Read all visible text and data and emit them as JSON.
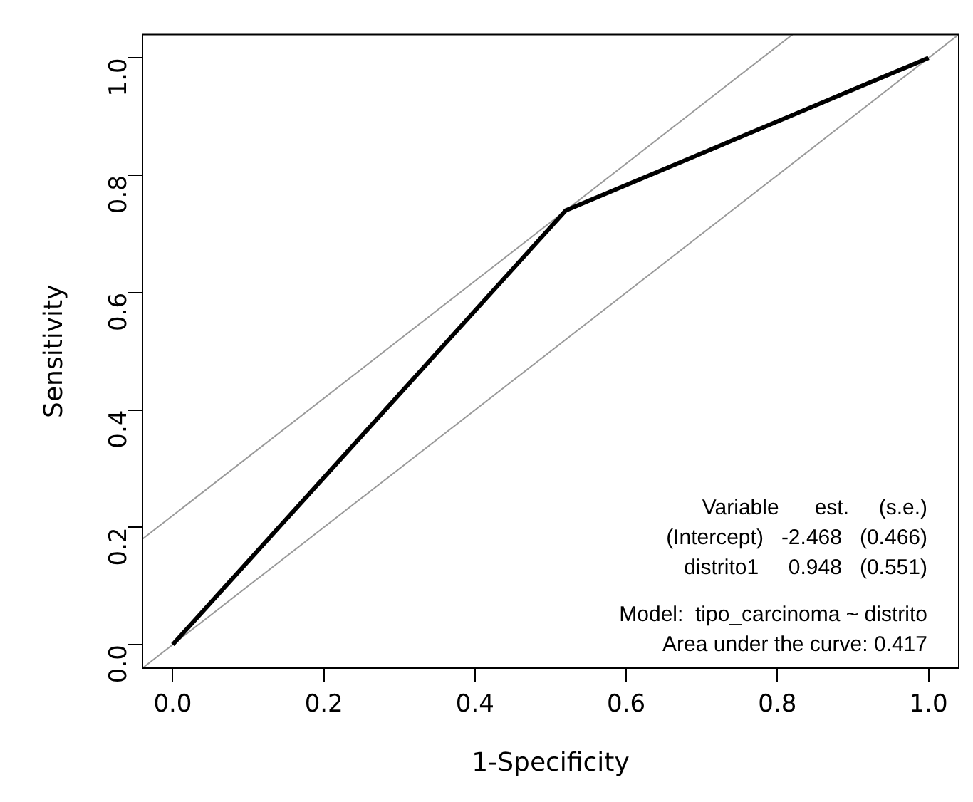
{
  "chart_data": {
    "type": "line",
    "xlabel": "1-Specificity",
    "ylabel": "Sensitivity",
    "xlim": [
      -0.04,
      1.04
    ],
    "ylim": [
      -0.04,
      1.04
    ],
    "xticks": [
      {
        "value": 0,
        "label": "0.0"
      },
      {
        "value": 0.2,
        "label": "0.2"
      },
      {
        "value": 0.4,
        "label": "0.4"
      },
      {
        "value": 0.6,
        "label": "0.6"
      },
      {
        "value": 0.8,
        "label": "0.8"
      },
      {
        "value": 1,
        "label": "1.0"
      }
    ],
    "yticks": [
      {
        "value": 0,
        "label": "0.0"
      },
      {
        "value": 0.2,
        "label": "0.2"
      },
      {
        "value": 0.4,
        "label": "0.4"
      },
      {
        "value": 0.6,
        "label": "0.6"
      },
      {
        "value": 0.8,
        "label": "0.8"
      },
      {
        "value": 1,
        "label": "1.0"
      }
    ],
    "grid": false,
    "legend": false,
    "marker": "none",
    "line_style": "solid",
    "series": [
      {
        "color": "#000000",
        "x": [
          0,
          0.52,
          1
        ],
        "values": [
          0,
          0.74,
          1
        ]
      },
      {
        "color": "#9a9a9a",
        "x": [
          -0.04,
          1.04
        ],
        "values": [
          -0.04,
          1.04
        ]
      },
      {
        "color": "#9a9a9a",
        "x": [
          -0.04,
          0.82
        ],
        "values": [
          0.18,
          1.04
        ]
      }
    ],
    "annotations": [
      "Variable      est.     (s.e.)",
      "(Intercept)   -2.468   (0.466)",
      "distrito1     0.948   (0.551)",
      "Model:  tipo_carcinoma ~ distrito",
      "Area under the curve: 0.417"
    ]
  }
}
